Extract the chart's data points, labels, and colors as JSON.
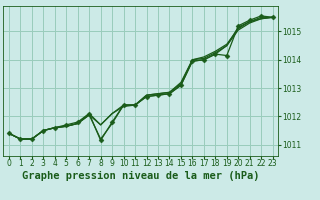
{
  "title": "Graphe pression niveau de la mer (hPa)",
  "bg_color": "#cceae7",
  "grid_color": "#99ccbb",
  "line_color": "#1a5c1a",
  "marker_color": "#1a5c1a",
  "xlim": [
    -0.5,
    23.5
  ],
  "ylim": [
    1010.6,
    1015.9
  ],
  "yticks": [
    1011,
    1012,
    1013,
    1014,
    1015
  ],
  "xticks": [
    0,
    1,
    2,
    3,
    4,
    5,
    6,
    7,
    8,
    9,
    10,
    11,
    12,
    13,
    14,
    15,
    16,
    17,
    18,
    19,
    20,
    21,
    22,
    23
  ],
  "series": [
    [
      1011.4,
      1011.2,
      1011.2,
      1011.5,
      1011.6,
      1011.7,
      1011.8,
      1012.1,
      1011.15,
      1011.8,
      1012.4,
      1012.4,
      1012.7,
      1012.75,
      1012.8,
      1013.1,
      1013.95,
      1014.0,
      1014.2,
      1014.15,
      1015.2,
      1015.4,
      1015.55,
      1015.5
    ],
    [
      1011.4,
      1011.2,
      1011.2,
      1011.5,
      1011.6,
      1011.65,
      1011.75,
      1012.1,
      1011.7,
      1012.1,
      1012.4,
      1012.4,
      1012.75,
      1012.8,
      1012.85,
      1013.15,
      1014.0,
      1014.05,
      1014.25,
      1014.5,
      1015.05,
      1015.3,
      1015.45,
      1015.5
    ],
    [
      1011.4,
      1011.2,
      1011.2,
      1011.5,
      1011.6,
      1011.65,
      1011.75,
      1012.05,
      1011.7,
      1012.1,
      1012.35,
      1012.4,
      1012.75,
      1012.8,
      1012.85,
      1013.2,
      1014.0,
      1014.1,
      1014.3,
      1014.55,
      1015.1,
      1015.35,
      1015.45,
      1015.5
    ],
    [
      1011.4,
      1011.2,
      1011.2,
      1011.5,
      1011.6,
      1011.65,
      1011.75,
      1012.05,
      1011.2,
      1011.75,
      1012.4,
      1012.4,
      1012.7,
      1012.75,
      1012.8,
      1013.1,
      1013.95,
      1014.0,
      1014.2,
      1014.5,
      1015.15,
      1015.35,
      1015.5,
      1015.5
    ]
  ],
  "main_series_idx": 0,
  "marker_size": 2.5,
  "line_width": 0.9,
  "title_fontsize": 7.5,
  "tick_fontsize": 5.5,
  "ylabel_right": true
}
